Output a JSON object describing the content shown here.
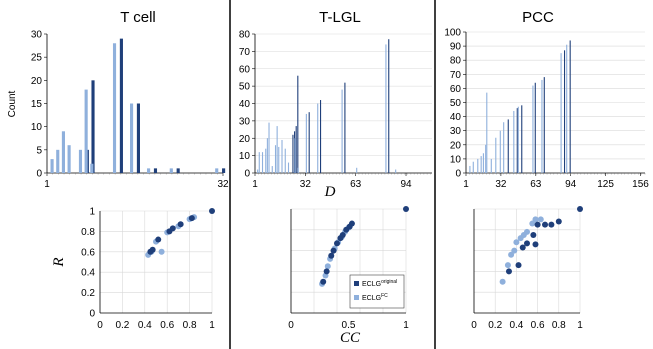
{
  "colors": {
    "original": "#1f3f7a",
    "fc": "#8fb0dc",
    "axis": "#000000",
    "grid": "#d9d9d9"
  },
  "shared_labels": {
    "ylabel_top": "Count",
    "xlabel_top": "D",
    "ylabel_bottom": "R",
    "xlabel_bottom": "CC"
  },
  "legend": {
    "original": "ECLG",
    "original_sup": "original",
    "fc": "ECLG",
    "fc_sup": "FC"
  },
  "chart_data": [
    {
      "type": "bar",
      "title": "T cell",
      "ylabel": "Count",
      "xlabel": "",
      "xlim": [
        1,
        32
      ],
      "ylim": [
        0,
        30
      ],
      "xticks": [
        "1",
        "32"
      ],
      "yticks": [
        "0",
        "5",
        "10",
        "15",
        "20",
        "25",
        "30"
      ],
      "grid": false,
      "series": [
        {
          "name": "ECLG original",
          "points": [
            [
              8,
              5
            ],
            [
              9,
              20
            ],
            [
              14,
              29
            ],
            [
              17,
              15
            ],
            [
              20,
              1
            ],
            [
              24,
              1
            ],
            [
              32,
              1
            ]
          ]
        },
        {
          "name": "ECLG FC",
          "points": [
            [
              2,
              3
            ],
            [
              3,
              5
            ],
            [
              4,
              9
            ],
            [
              5,
              6
            ],
            [
              7,
              5
            ],
            [
              8,
              18
            ],
            [
              9,
              2
            ],
            [
              13,
              28
            ],
            [
              16,
              15
            ],
            [
              19,
              1
            ],
            [
              23,
              1
            ],
            [
              31,
              1
            ]
          ]
        }
      ]
    },
    {
      "type": "bar",
      "title": "T-LGL",
      "ylabel": "",
      "xlabel": "D",
      "xlim": [
        1,
        110
      ],
      "ylim": [
        0,
        80
      ],
      "xticks": [
        "1",
        "32",
        "63",
        "94"
      ],
      "yticks": [
        "0",
        "10",
        "20",
        "30",
        "40",
        "50",
        "60",
        "70",
        "80"
      ],
      "grid": true,
      "series": [
        {
          "name": "ECLG original",
          "points": [
            [
              24,
              22
            ],
            [
              25,
              24
            ],
            [
              26,
              27
            ],
            [
              27,
              56
            ],
            [
              34,
              35
            ],
            [
              41,
              42
            ],
            [
              56,
              52
            ],
            [
              83,
              77
            ]
          ]
        },
        {
          "name": "ECLG FC",
          "points": [
            [
              3,
              2
            ],
            [
              4,
              12
            ],
            [
              6,
              12
            ],
            [
              8,
              14
            ],
            [
              9,
              20
            ],
            [
              10,
              29
            ],
            [
              12,
              4
            ],
            [
              14,
              16
            ],
            [
              15,
              27
            ],
            [
              16,
              15
            ],
            [
              18,
              19
            ],
            [
              20,
              14
            ],
            [
              22,
              6
            ],
            [
              26,
              20
            ],
            [
              28,
              3
            ],
            [
              33,
              34
            ],
            [
              40,
              40
            ],
            [
              55,
              48
            ],
            [
              64,
              3
            ],
            [
              82,
              74
            ],
            [
              88,
              2
            ]
          ]
        }
      ]
    },
    {
      "type": "bar",
      "title": "PCC",
      "ylabel": "",
      "xlabel": "",
      "xlim": [
        1,
        160
      ],
      "ylim": [
        0,
        100
      ],
      "xticks": [
        "1",
        "32",
        "63",
        "94",
        "125",
        "156"
      ],
      "yticks": [
        "0",
        "10",
        "20",
        "30",
        "40",
        "50",
        "60",
        "70",
        "80",
        "90",
        "100"
      ],
      "grid": true,
      "series": [
        {
          "name": "ECLG original",
          "points": [
            [
              38,
              38
            ],
            [
              46,
              46
            ],
            [
              50,
              48
            ],
            [
              62,
              64
            ],
            [
              70,
              68
            ],
            [
              88,
              87
            ],
            [
              93,
              94
            ]
          ]
        },
        {
          "name": "ECLG FC",
          "points": [
            [
              5,
              5
            ],
            [
              8,
              8
            ],
            [
              12,
              10
            ],
            [
              15,
              12
            ],
            [
              17,
              14
            ],
            [
              19,
              20
            ],
            [
              20,
              57
            ],
            [
              24,
              10
            ],
            [
              28,
              25
            ],
            [
              32,
              30
            ],
            [
              35,
              36
            ],
            [
              44,
              44
            ],
            [
              48,
              47
            ],
            [
              61,
              62
            ],
            [
              69,
              66
            ],
            [
              86,
              85
            ],
            [
              91,
              91
            ]
          ]
        }
      ]
    },
    {
      "type": "scatter",
      "title": "",
      "ylabel": "R",
      "xlabel": "",
      "xlim": [
        0,
        1
      ],
      "ylim": [
        0,
        1
      ],
      "xticks": [
        "0",
        "0.2",
        "0.4",
        "0.6",
        "0.8",
        "1"
      ],
      "yticks": [
        "0",
        "0.2",
        "0.4",
        "0.6",
        "0.8",
        "1"
      ],
      "grid": true,
      "series": [
        {
          "name": "ECLG original",
          "points": [
            [
              0.45,
              0.6
            ],
            [
              0.47,
              0.62
            ],
            [
              0.52,
              0.72
            ],
            [
              0.62,
              0.8
            ],
            [
              0.65,
              0.83
            ],
            [
              0.72,
              0.87
            ],
            [
              0.82,
              0.93
            ],
            [
              1.0,
              1.0
            ]
          ]
        },
        {
          "name": "ECLG FC",
          "points": [
            [
              0.43,
              0.57
            ],
            [
              0.46,
              0.6
            ],
            [
              0.55,
              0.6
            ],
            [
              0.5,
              0.7
            ],
            [
              0.6,
              0.79
            ],
            [
              0.7,
              0.85
            ],
            [
              0.8,
              0.92
            ],
            [
              0.84,
              0.94
            ]
          ]
        }
      ]
    },
    {
      "type": "scatter",
      "title": "",
      "ylabel": "",
      "xlabel": "CC",
      "xlim": [
        0,
        1
      ],
      "ylim": [
        0,
        1
      ],
      "xticks": [
        "0",
        "0.5",
        "1"
      ],
      "yticks": [],
      "grid": true,
      "legend_position": "bottom-right",
      "series": [
        {
          "name": "ECLG original",
          "points": [
            [
              0.28,
              0.3
            ],
            [
              0.31,
              0.4
            ],
            [
              0.35,
              0.55
            ],
            [
              0.37,
              0.6
            ],
            [
              0.4,
              0.67
            ],
            [
              0.43,
              0.72
            ],
            [
              0.45,
              0.75
            ],
            [
              0.48,
              0.8
            ],
            [
              0.51,
              0.83
            ],
            [
              0.53,
              0.86
            ],
            [
              1.0,
              1.0
            ]
          ]
        },
        {
          "name": "ECLG FC",
          "points": [
            [
              0.27,
              0.28
            ],
            [
              0.3,
              0.36
            ],
            [
              0.32,
              0.45
            ],
            [
              0.34,
              0.52
            ],
            [
              0.38,
              0.62
            ],
            [
              0.41,
              0.68
            ],
            [
              0.44,
              0.73
            ],
            [
              0.47,
              0.78
            ],
            [
              0.5,
              0.82
            ]
          ]
        }
      ]
    },
    {
      "type": "scatter",
      "title": "",
      "ylabel": "",
      "xlabel": "",
      "xlim": [
        0,
        1
      ],
      "ylim": [
        0,
        1
      ],
      "xticks": [
        "0",
        "0.2",
        "0.4",
        "0.6",
        "0.8",
        "1"
      ],
      "yticks": [],
      "grid": true,
      "series": [
        {
          "name": "ECLG original",
          "points": [
            [
              0.33,
              0.4
            ],
            [
              0.42,
              0.46
            ],
            [
              0.46,
              0.63
            ],
            [
              0.5,
              0.67
            ],
            [
              0.56,
              0.75
            ],
            [
              0.58,
              0.66
            ],
            [
              0.6,
              0.85
            ],
            [
              0.67,
              0.85
            ],
            [
              0.73,
              0.85
            ],
            [
              0.8,
              0.88
            ],
            [
              1.0,
              1.0
            ]
          ]
        },
        {
          "name": "ECLG FC",
          "points": [
            [
              0.27,
              0.3
            ],
            [
              0.32,
              0.46
            ],
            [
              0.35,
              0.56
            ],
            [
              0.38,
              0.6
            ],
            [
              0.4,
              0.68
            ],
            [
              0.44,
              0.72
            ],
            [
              0.47,
              0.75
            ],
            [
              0.5,
              0.78
            ],
            [
              0.55,
              0.86
            ],
            [
              0.58,
              0.9
            ],
            [
              0.63,
              0.9
            ]
          ]
        }
      ]
    }
  ]
}
